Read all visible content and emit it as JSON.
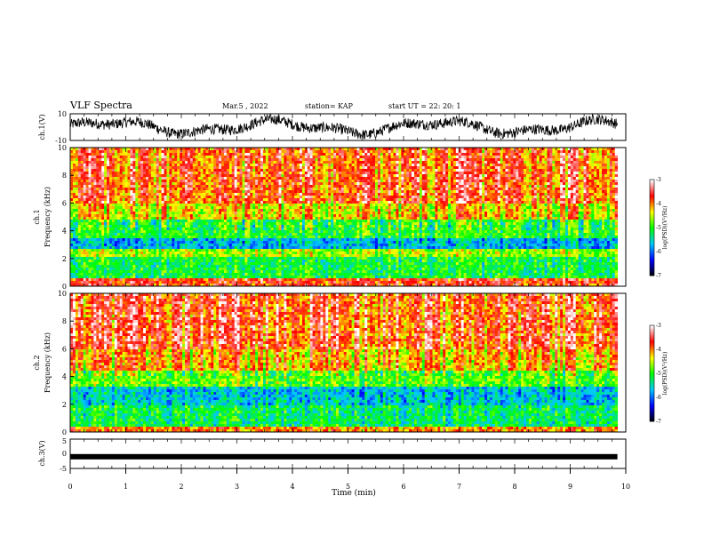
{
  "header": {
    "title": "VLF Spectra",
    "date": "Mar.5 , 2022",
    "station": "station= KAP",
    "start": "start UT =  22: 20: 1"
  },
  "chart_data": [
    {
      "type": "line",
      "ylabel": "ch.1(V)",
      "xlim": [
        0,
        10
      ],
      "ylim": [
        -10,
        10
      ],
      "yticks": [
        "10",
        "-10"
      ],
      "noise_amplitude": 2.5
    },
    {
      "type": "heatmap",
      "ylabel": "ch.1\nFrequency (kHz)",
      "ylabel_line1": "ch.1",
      "ylabel_line2": "Frequency (kHz)",
      "xlim": [
        0,
        9.85
      ],
      "ylim": [
        0,
        10
      ],
      "yticks": [
        "0",
        "2",
        "4",
        "6",
        "8",
        "10"
      ],
      "colorbar": {
        "label": "log(PSD)(V²/Hz)",
        "range": [
          -7,
          -3
        ],
        "ticks": [
          "-3",
          "-4",
          "-5",
          "-6",
          "-7"
        ],
        "colors": [
          "#000000",
          "#0000ff",
          "#00c8ff",
          "#00ff00",
          "#ffff00",
          "#ff0000",
          "#ffffff"
        ]
      },
      "bands": [
        {
          "fmin": 0.0,
          "fmax": 0.6,
          "level": -3.7
        },
        {
          "fmin": 0.6,
          "fmax": 2.2,
          "level": -5.1
        },
        {
          "fmin": 2.2,
          "fmax": 2.6,
          "level": -4.6
        },
        {
          "fmin": 2.6,
          "fmax": 3.4,
          "level": -5.7
        },
        {
          "fmin": 3.4,
          "fmax": 4.9,
          "level": -5.0
        },
        {
          "fmin": 4.9,
          "fmax": 6.0,
          "level": -4.3
        },
        {
          "fmin": 6.0,
          "fmax": 10.0,
          "level": -3.8
        }
      ]
    },
    {
      "type": "heatmap",
      "ylabel": "ch.2\nFrequency (kHz)",
      "ylabel_line1": "ch.2",
      "ylabel_line2": "Frequency (kHz)",
      "xlim": [
        0,
        9.85
      ],
      "ylim": [
        0,
        10
      ],
      "yticks": [
        "0",
        "2",
        "4",
        "6",
        "8",
        "10"
      ],
      "colorbar": {
        "label": "log(PSD)(V²/Hz)",
        "range": [
          -7,
          -3
        ],
        "ticks": [
          "-3",
          "-4",
          "-5",
          "-6",
          "-7"
        ],
        "colors": [
          "#000000",
          "#0000ff",
          "#00c8ff",
          "#00ff00",
          "#ffff00",
          "#ff0000",
          "#ffffff"
        ]
      },
      "bands": [
        {
          "fmin": 0.0,
          "fmax": 0.4,
          "level": -4.0
        },
        {
          "fmin": 0.4,
          "fmax": 2.0,
          "level": -5.2
        },
        {
          "fmin": 2.0,
          "fmax": 3.2,
          "level": -5.6
        },
        {
          "fmin": 3.2,
          "fmax": 4.4,
          "level": -4.8
        },
        {
          "fmin": 4.4,
          "fmax": 6.0,
          "level": -4.1
        },
        {
          "fmin": 6.0,
          "fmax": 10.0,
          "level": -3.7
        }
      ]
    },
    {
      "type": "line",
      "ylabel": "ch.3(V)",
      "xlabel": "Time (min)",
      "xlim": [
        0,
        10
      ],
      "ylim": [
        -5,
        5
      ],
      "yticks": [
        "5",
        "0",
        "-5"
      ],
      "xticks": [
        "0",
        "1",
        "2",
        "3",
        "4",
        "5",
        "6",
        "7",
        "8",
        "9",
        "10"
      ],
      "values": {
        "x": [
          0,
          9.85
        ],
        "y": [
          -1,
          -1
        ]
      }
    }
  ]
}
